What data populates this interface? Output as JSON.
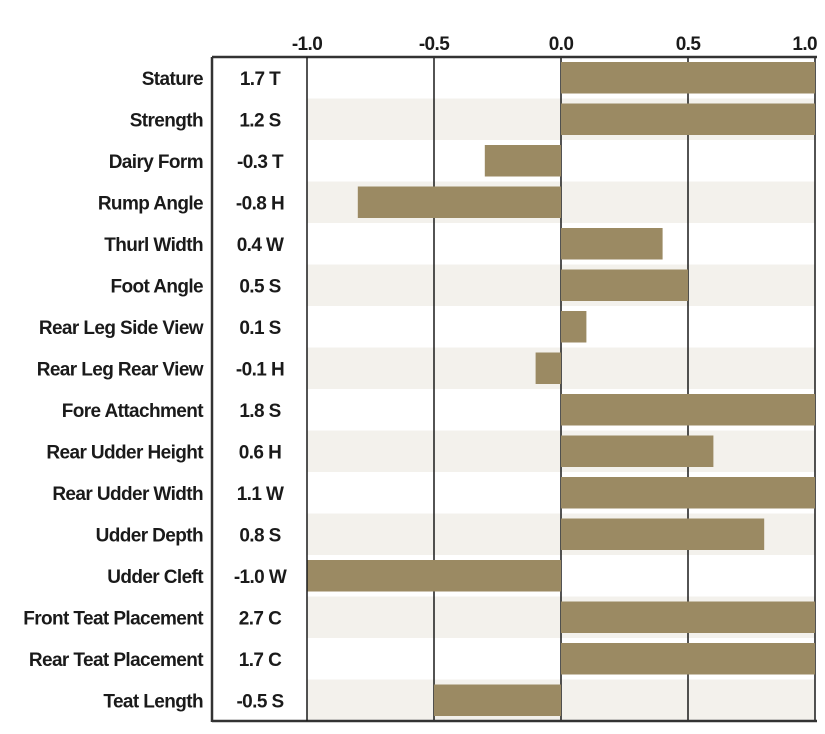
{
  "chart_data": {
    "type": "bar",
    "orientation": "horizontal",
    "title": "",
    "xlabel": "",
    "ylabel": "",
    "xlim": [
      -1.0,
      1.0
    ],
    "x_ticks": [
      -1.0,
      -0.5,
      0.0,
      0.5,
      1.0
    ],
    "x_tick_labels": [
      "-1.0",
      "-0.5",
      "0.0",
      "0.5",
      "1.0"
    ],
    "grid": "vertical",
    "bar_color": "#9b8a63",
    "stripe_color": "#f3f1ec",
    "categories": [
      "Stature",
      "Strength",
      "Dairy Form",
      "Rump Angle",
      "Thurl Width",
      "Foot Angle",
      "Rear Leg Side View",
      "Rear Leg Rear View",
      "Fore Attachment",
      "Rear Udder Height",
      "Rear Udder Width",
      "Udder Depth",
      "Udder Cleft",
      "Front Teat Placement",
      "Rear Teat Placement",
      "Teat Length"
    ],
    "value_labels": [
      "1.7 T",
      "1.2 S",
      "-0.3 T",
      "-0.8 H",
      "0.4 W",
      "0.5 S",
      "0.1 S",
      "-0.1 H",
      "1.8 S",
      "0.6 H",
      "1.1 W",
      "0.8 S",
      "-1.0 W",
      "2.7 C",
      "1.7 C",
      "-0.5 S"
    ],
    "values": [
      1.7,
      1.2,
      -0.3,
      -0.8,
      0.4,
      0.5,
      0.1,
      -0.1,
      1.8,
      0.6,
      1.1,
      0.8,
      -1.0,
      2.7,
      1.7,
      -0.5
    ]
  }
}
